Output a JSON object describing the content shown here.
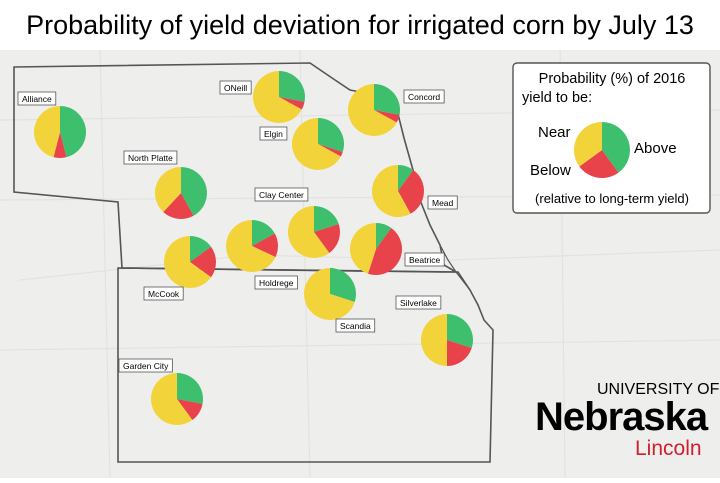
{
  "title": "Probability of yield deviation for irrigated corn by July 13",
  "colors": {
    "near": "#f2d33a",
    "below": "#e8434b",
    "above": "#3dbf6d",
    "border": "#555555",
    "map_bg": "#eeefed"
  },
  "legend": {
    "title_line1": "Probability (%) of 2016",
    "title_line2": "yield to be:",
    "near": "Near",
    "below": "Below",
    "above": "Above",
    "note": "(relative to long-term yield)",
    "sample": {
      "above": 40,
      "below": 25,
      "near": 35
    }
  },
  "logo": {
    "line1": "UNIVERSITY OF",
    "line2": "Nebraska",
    "line3": "Lincoln"
  },
  "sites": [
    {
      "name": "Alliance",
      "above": 46,
      "below": 8,
      "near": 46
    },
    {
      "name": "ONeill",
      "above": 28,
      "below": 5,
      "near": 67
    },
    {
      "name": "Concord",
      "above": 28,
      "below": 5,
      "near": 67
    },
    {
      "name": "Elgin",
      "above": 30,
      "below": 3,
      "near": 67
    },
    {
      "name": "North Platte",
      "above": 42,
      "below": 20,
      "near": 38
    },
    {
      "name": "Mead",
      "above": 10,
      "below": 32,
      "near": 58
    },
    {
      "name": "Clay Center",
      "above": 20,
      "below": 20,
      "near": 60
    },
    {
      "name": "McCook",
      "above": 15,
      "below": 20,
      "near": 65
    },
    {
      "name": "Holdrege",
      "above": 17,
      "below": 15,
      "near": 68
    },
    {
      "name": "Beatrice",
      "above": 10,
      "below": 45,
      "near": 45
    },
    {
      "name": "Scandia",
      "above": 30,
      "below": 0,
      "near": 70
    },
    {
      "name": "Silverlake",
      "above": 30,
      "below": 20,
      "near": 50
    },
    {
      "name": "Garden City",
      "above": 28,
      "below": 12,
      "near": 60
    }
  ]
}
